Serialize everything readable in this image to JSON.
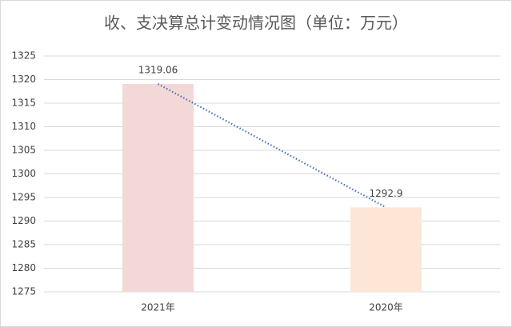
{
  "chart_data": {
    "type": "bar",
    "title": "收、支决算总计变动情况图（单位：万元）",
    "categories": [
      "2021年",
      "2020年"
    ],
    "values": [
      1319.06,
      1292.9
    ],
    "colors": [
      "#f2d8d6",
      "#fde6d5"
    ],
    "ylim": [
      1275,
      1325
    ],
    "yticks": [
      1275,
      1280,
      1285,
      1290,
      1295,
      1300,
      1305,
      1310,
      1315,
      1320,
      1325
    ],
    "grid": true,
    "trendline": true,
    "trendline_color": "#4472c4"
  }
}
